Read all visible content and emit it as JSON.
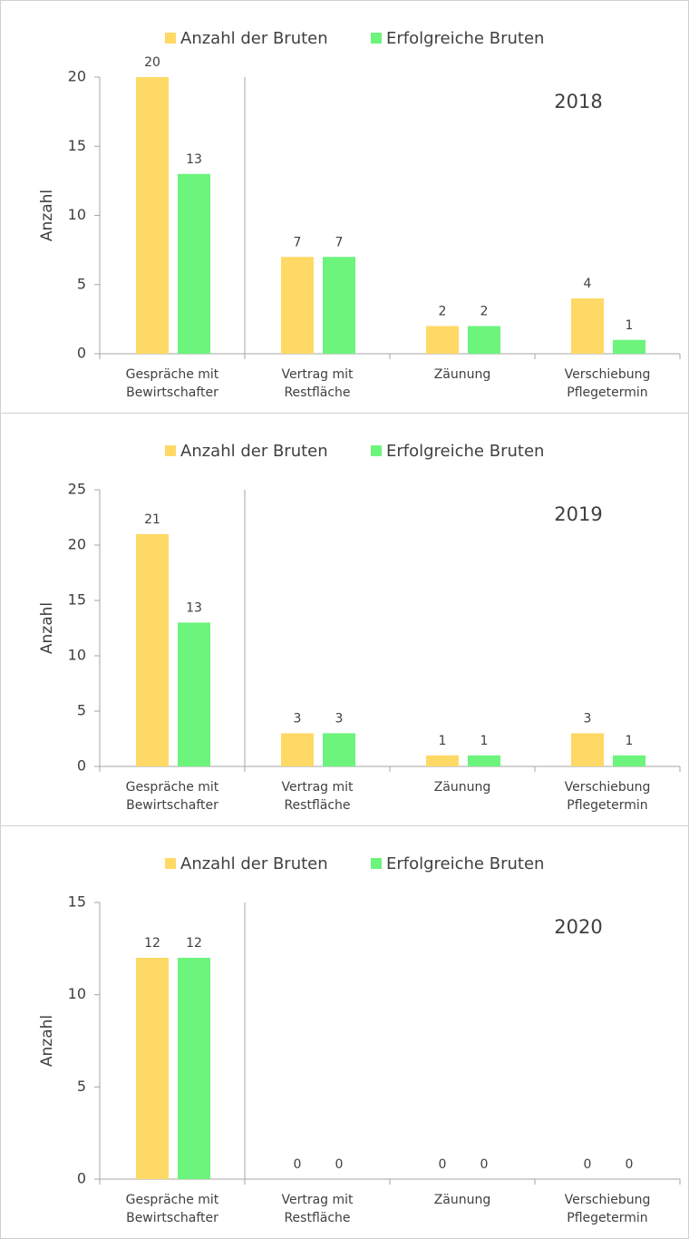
{
  "chart_data": [
    {
      "type": "bar",
      "annotation": "2018",
      "y_label": "Anzahl",
      "categories": [
        [
          "Gespräche mit",
          "Bewirtschafter"
        ],
        [
          "Vertrag mit",
          "Restfläche"
        ],
        [
          "Zäunung"
        ],
        [
          "Verschiebung",
          "Pflegetermin"
        ]
      ],
      "series": [
        {
          "name": "Anzahl der Bruten",
          "color": "#ffd966",
          "values": [
            20,
            7,
            2,
            4
          ]
        },
        {
          "name": "Erfolgreiche Bruten",
          "color": "#6cf47c",
          "values": [
            13,
            7,
            2,
            1
          ]
        }
      ],
      "ylim": [
        0,
        20
      ],
      "yticks": [
        0,
        5,
        10,
        15,
        20
      ],
      "legend": "top"
    },
    {
      "type": "bar",
      "annotation": "2019",
      "y_label": "Anzahl",
      "categories": [
        [
          "Gespräche mit",
          "Bewirtschafter"
        ],
        [
          "Vertrag mit",
          "Restfläche"
        ],
        [
          "Zäunung"
        ],
        [
          "Verschiebung",
          "Pflegetermin"
        ]
      ],
      "series": [
        {
          "name": "Anzahl der Bruten",
          "color": "#ffd966",
          "values": [
            21,
            3,
            1,
            3
          ]
        },
        {
          "name": "Erfolgreiche Bruten",
          "color": "#6cf47c",
          "values": [
            13,
            3,
            1,
            1
          ]
        }
      ],
      "ylim": [
        0,
        25
      ],
      "yticks": [
        0,
        5,
        10,
        15,
        20,
        25
      ],
      "legend": "top"
    },
    {
      "type": "bar",
      "annotation": "2020",
      "y_label": "Anzahl",
      "categories": [
        [
          "Gespräche mit",
          "Bewirtschafter"
        ],
        [
          "Vertrag mit",
          "Restfläche"
        ],
        [
          "Zäunung"
        ],
        [
          "Verschiebung",
          "Pflegetermin"
        ]
      ],
      "series": [
        {
          "name": "Anzahl der Bruten",
          "color": "#ffd966",
          "values": [
            12,
            0,
            0,
            0
          ]
        },
        {
          "name": "Erfolgreiche Bruten",
          "color": "#6cf47c",
          "values": [
            12,
            0,
            0,
            0
          ]
        }
      ],
      "ylim": [
        0,
        15
      ],
      "yticks": [
        0,
        5,
        10,
        15
      ],
      "legend": "top"
    }
  ]
}
